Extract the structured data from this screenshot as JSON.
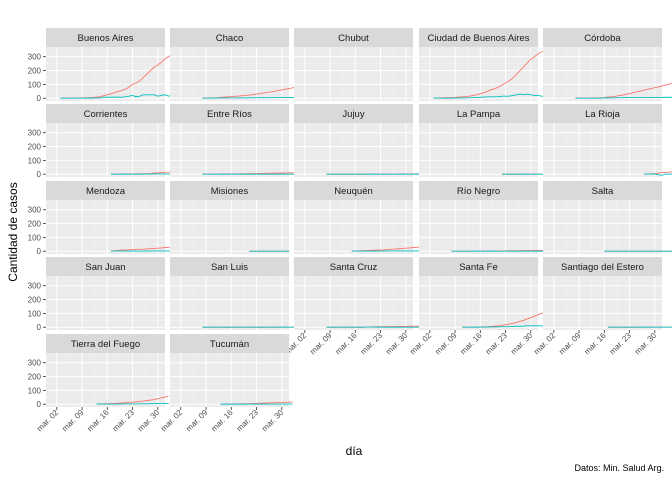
{
  "chart_data": {
    "type": "line",
    "xlabel": "día",
    "ylabel": "Cantidad de casos",
    "caption": "Datos: Min. Salud Arg.",
    "ylim": [
      -20,
      370
    ],
    "yticks": [
      0,
      100,
      200,
      300
    ],
    "x_range": [
      "2020-02-28",
      "2020-04-01"
    ],
    "x_ticks": [
      "2020-03-02",
      "2020-03-09",
      "2020-03-16",
      "2020-03-23",
      "2020-03-30"
    ],
    "x_tick_labels": [
      "mar. 02",
      "mar. 09",
      "mar. 16",
      "mar. 23",
      "mar. 30"
    ],
    "grid": true,
    "series_colors": [
      "#F8766D",
      "#00BFC4"
    ],
    "panels": [
      {
        "name": "Buenos Aires",
        "start": "2020-03-03",
        "a": [
          1,
          1,
          1,
          1,
          1,
          2,
          3,
          3,
          5,
          6,
          8,
          10,
          18,
          25,
          32,
          40,
          48,
          55,
          65,
          80,
          100,
          110,
          125,
          150,
          175,
          200,
          225,
          240,
          260,
          285,
          300,
          320
        ],
        "b": [
          0,
          0,
          0,
          0,
          0,
          1,
          1,
          0,
          2,
          1,
          2,
          2,
          8,
          7,
          7,
          8,
          8,
          7,
          10,
          15,
          20,
          10,
          15,
          25,
          25,
          25,
          25,
          15,
          20,
          25,
          15,
          20
        ]
      },
      {
        "name": "Chaco",
        "start": "2020-03-08",
        "a": [
          1,
          1,
          2,
          3,
          4,
          6,
          8,
          10,
          12,
          14,
          16,
          18,
          20,
          23,
          26,
          30,
          34,
          38,
          42,
          46,
          50,
          55,
          60,
          65,
          70,
          75,
          80,
          84
        ],
        "b": [
          0,
          0,
          1,
          1,
          1,
          2,
          2,
          2,
          2,
          2,
          2,
          2,
          2,
          3,
          3,
          4,
          4,
          4,
          4,
          4,
          4,
          5,
          5,
          5,
          5,
          5,
          5,
          4
        ]
      },
      {
        "name": "Chubut",
        "start": "2020-03-03",
        "a": [],
        "b": []
      },
      {
        "name": "Ciudad de Buenos Aires",
        "start": "2020-03-03",
        "a": [
          1,
          2,
          3,
          4,
          4,
          5,
          6,
          8,
          10,
          12,
          15,
          20,
          25,
          32,
          40,
          50,
          60,
          70,
          80,
          95,
          110,
          125,
          145,
          170,
          200,
          225,
          255,
          280,
          300,
          320,
          335,
          345
        ],
        "b": [
          1,
          1,
          1,
          0,
          0,
          1,
          1,
          2,
          2,
          2,
          3,
          5,
          5,
          7,
          8,
          10,
          10,
          10,
          10,
          15,
          15,
          15,
          20,
          25,
          30,
          25,
          30,
          25,
          20,
          20,
          15,
          15
        ]
      },
      {
        "name": "Córdoba",
        "start": "2020-03-08",
        "a": [
          1,
          1,
          1,
          1,
          1,
          2,
          2,
          3,
          5,
          8,
          10,
          14,
          18,
          22,
          28,
          34,
          40,
          46,
          52,
          58,
          64,
          70,
          76,
          82,
          88,
          95,
          102,
          108
        ],
        "b": [
          0,
          0,
          0,
          0,
          0,
          0,
          0,
          1,
          2,
          3,
          2,
          3,
          4,
          4,
          5,
          6,
          6,
          6,
          6,
          6,
          6,
          6,
          6,
          6,
          6,
          7,
          7,
          6
        ]
      },
      {
        "name": "Corrientes",
        "start": "2020-03-17",
        "a": [
          1,
          1,
          1,
          1,
          2,
          2,
          2,
          2,
          3,
          3,
          4,
          5,
          8,
          10,
          12,
          14,
          15,
          17,
          18
        ],
        "b": [
          0,
          0,
          0,
          0,
          1,
          0,
          0,
          0,
          1,
          0,
          1,
          1,
          3,
          2,
          2,
          2,
          1,
          2,
          1
        ]
      },
      {
        "name": "Entre Ríos",
        "start": "2020-03-08",
        "a": [
          1,
          1,
          1,
          1,
          1,
          1,
          2,
          2,
          2,
          2,
          3,
          3,
          4,
          4,
          5,
          5,
          6,
          6,
          7,
          7,
          8,
          8,
          9,
          9,
          10,
          10,
          10,
          11
        ],
        "b": [
          0,
          0,
          0,
          0,
          0,
          0,
          1,
          0,
          0,
          0,
          1,
          0,
          1,
          0,
          1,
          0,
          1,
          0,
          1,
          0,
          1,
          0,
          1,
          0,
          1,
          0,
          0,
          1
        ]
      },
      {
        "name": "Jujuy",
        "start": "2020-03-08",
        "a": [
          0,
          0,
          0,
          0,
          0,
          0,
          0,
          0,
          0,
          0,
          0,
          0,
          1,
          1,
          1,
          1,
          1,
          1,
          1,
          1,
          1,
          2,
          2,
          2,
          2,
          3,
          3,
          3
        ],
        "b": [
          0,
          0,
          0,
          0,
          0,
          0,
          0,
          0,
          0,
          0,
          0,
          0,
          1,
          0,
          0,
          0,
          0,
          0,
          0,
          0,
          0,
          1,
          0,
          0,
          0,
          1,
          0,
          0
        ]
      },
      {
        "name": "La Pampa",
        "start": "2020-03-22",
        "a": [
          0,
          0,
          0,
          0,
          0,
          0,
          1,
          1,
          1,
          1,
          1,
          1,
          1,
          1
        ],
        "b": [
          0,
          0,
          0,
          0,
          0,
          0,
          1,
          0,
          0,
          0,
          0,
          0,
          0,
          0
        ]
      },
      {
        "name": "La Rioja",
        "start": "2020-03-27",
        "a": [
          1,
          2,
          3,
          5,
          8,
          12,
          14,
          16,
          17
        ],
        "b": [
          1,
          1,
          1,
          2,
          -3,
          -8,
          2,
          1,
          1
        ]
      },
      {
        "name": "Mendoza",
        "start": "2020-03-17",
        "a": [
          2,
          4,
          6,
          8,
          9,
          10,
          12,
          13,
          14,
          15,
          17,
          18,
          20,
          22,
          24,
          26,
          28,
          30,
          32
        ],
        "b": [
          0,
          2,
          2,
          2,
          1,
          1,
          2,
          1,
          1,
          1,
          2,
          1,
          2,
          2,
          2,
          2,
          2,
          -6,
          2
        ]
      },
      {
        "name": "Misiones",
        "start": "2020-03-21",
        "a": [
          0,
          0,
          0,
          0,
          0,
          0,
          0,
          0,
          0,
          0,
          0,
          0
        ],
        "b": [
          0,
          0,
          0,
          0,
          0,
          0,
          0,
          0,
          0,
          0,
          0,
          0
        ]
      },
      {
        "name": "Neuquén",
        "start": "2020-03-15",
        "a": [
          1,
          2,
          3,
          4,
          5,
          6,
          7,
          8,
          9,
          10,
          12,
          14,
          16,
          18,
          20,
          22,
          24,
          26,
          28,
          29,
          30
        ],
        "b": [
          0,
          1,
          1,
          1,
          1,
          1,
          1,
          1,
          1,
          1,
          2,
          2,
          2,
          2,
          2,
          2,
          2,
          2,
          2,
          1,
          1
        ]
      },
      {
        "name": "Río Negro",
        "start": "2020-03-08",
        "a": [
          0,
          0,
          0,
          0,
          0,
          0,
          0,
          1,
          1,
          1,
          1,
          2,
          2,
          2,
          2,
          2,
          3,
          3,
          4,
          4,
          4,
          5,
          5,
          5,
          6,
          6,
          6,
          7
        ],
        "b": [
          0,
          0,
          0,
          0,
          0,
          0,
          0,
          1,
          0,
          0,
          0,
          1,
          0,
          0,
          0,
          0,
          1,
          0,
          1,
          0,
          0,
          1,
          0,
          0,
          1,
          0,
          0,
          1
        ]
      },
      {
        "name": "Salta",
        "start": "2020-03-16",
        "a": [
          0,
          0,
          0,
          0,
          0,
          0,
          0,
          0,
          0,
          0,
          0,
          0,
          0,
          0,
          0,
          0,
          0,
          0,
          0,
          0
        ],
        "b": [
          0,
          0,
          0,
          0,
          0,
          0,
          0,
          0,
          0,
          0,
          0,
          0,
          0,
          0,
          0,
          0,
          0,
          0,
          0,
          0
        ]
      },
      {
        "name": "San Juan",
        "start": "2020-03-03",
        "a": [],
        "b": []
      },
      {
        "name": "San Luis",
        "start": "2020-03-08",
        "a": [
          0,
          0,
          0,
          0,
          0,
          0,
          0,
          0,
          0,
          0,
          0,
          0,
          0,
          0,
          0,
          0,
          0,
          0,
          0,
          0,
          0,
          0,
          0,
          1,
          1,
          1,
          2,
          3
        ],
        "b": [
          0,
          0,
          0,
          0,
          0,
          0,
          0,
          0,
          0,
          0,
          0,
          0,
          0,
          0,
          0,
          0,
          0,
          0,
          0,
          0,
          0,
          0,
          0,
          1,
          0,
          0,
          1,
          1
        ]
      },
      {
        "name": "Santa Cruz",
        "start": "2020-03-08",
        "a": [
          0,
          0,
          0,
          0,
          0,
          0,
          0,
          0,
          0,
          0,
          0,
          1,
          2,
          3,
          3,
          4,
          4,
          5,
          5,
          5,
          6,
          6,
          6,
          7,
          7,
          7,
          8,
          8
        ],
        "b": [
          0,
          0,
          0,
          0,
          0,
          0,
          0,
          0,
          0,
          0,
          0,
          1,
          1,
          1,
          0,
          1,
          0,
          1,
          0,
          0,
          1,
          0,
          0,
          1,
          0,
          0,
          1,
          0
        ]
      },
      {
        "name": "Santa Fe",
        "start": "2020-03-11",
        "a": [
          1,
          1,
          1,
          1,
          2,
          2,
          3,
          4,
          6,
          8,
          10,
          14,
          18,
          22,
          28,
          35,
          42,
          50,
          60,
          70,
          80,
          90,
          100,
          110,
          122,
          135,
          148,
          158
        ],
        "b": [
          0,
          0,
          0,
          0,
          1,
          0,
          1,
          1,
          2,
          2,
          2,
          4,
          4,
          4,
          6,
          7,
          7,
          8,
          10,
          10,
          10,
          10,
          10,
          10,
          12,
          13,
          13,
          10
        ]
      },
      {
        "name": "Santiago del Estero",
        "start": "2020-03-17",
        "a": [
          0,
          0,
          0,
          0,
          0,
          0,
          0,
          0,
          0,
          0,
          1,
          1,
          1,
          1,
          1,
          1,
          1,
          1,
          1
        ],
        "b": [
          0,
          0,
          0,
          0,
          0,
          0,
          0,
          0,
          0,
          0,
          1,
          0,
          0,
          0,
          0,
          0,
          0,
          0,
          0
        ]
      },
      {
        "name": "Tierra del Fuego",
        "start": "2020-03-13",
        "a": [
          1,
          2,
          3,
          4,
          5,
          6,
          7,
          9,
          11,
          13,
          15,
          17,
          20,
          23,
          26,
          30,
          34,
          40,
          46,
          52,
          58
        ],
        "b": [
          1,
          1,
          1,
          1,
          1,
          1,
          1,
          2,
          2,
          2,
          2,
          2,
          3,
          3,
          3,
          4,
          4,
          6,
          6,
          6,
          6
        ]
      },
      {
        "name": "Tucumán",
        "start": "2020-03-13",
        "a": [
          0,
          0,
          1,
          1,
          2,
          2,
          3,
          3,
          4,
          5,
          6,
          7,
          8,
          9,
          10,
          11,
          12,
          13,
          14,
          15,
          16
        ],
        "b": [
          0,
          0,
          1,
          0,
          1,
          0,
          1,
          0,
          1,
          1,
          1,
          1,
          1,
          1,
          1,
          1,
          1,
          1,
          1,
          1,
          1
        ]
      }
    ]
  }
}
